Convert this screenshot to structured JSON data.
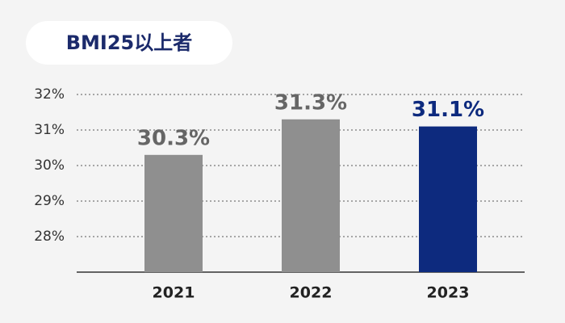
{
  "chart_data": {
    "type": "bar",
    "title": "BMI25以上者",
    "categories": [
      "2021",
      "2022",
      "2023"
    ],
    "values": [
      30.3,
      31.3,
      31.1
    ],
    "value_labels": [
      "30.3%",
      "31.3%",
      "31.1%"
    ],
    "colors": [
      "#8f8f8f",
      "#8f8f8f",
      "#0d2a7e"
    ],
    "label_colors": [
      "#666666",
      "#666666",
      "#0d2a7e"
    ],
    "ylim": [
      27,
      32
    ],
    "yticks": [
      {
        "value": 28,
        "label": "28%"
      },
      {
        "value": 29,
        "label": "29%"
      },
      {
        "value": 30,
        "label": "30%"
      },
      {
        "value": 31,
        "label": "31%"
      },
      {
        "value": 32,
        "label": "32%"
      }
    ],
    "grid": true
  }
}
